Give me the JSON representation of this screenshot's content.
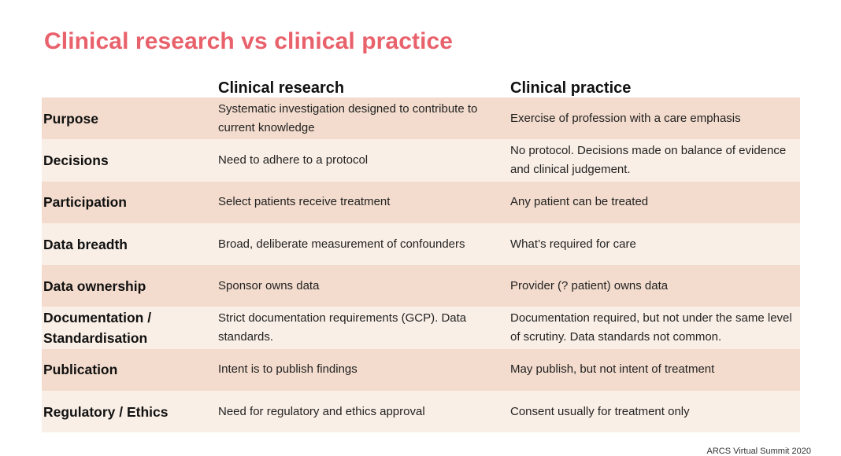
{
  "title": "Clinical research vs clinical practice",
  "columns": {
    "research": "Clinical research",
    "practice": "Clinical practice"
  },
  "rows": [
    {
      "label": "Purpose",
      "research": "Systematic investigation designed to contribute to current knowledge",
      "practice": "Exercise of profession with a care emphasis"
    },
    {
      "label": "Decisions",
      "research": "Need to adhere to a protocol",
      "practice": "No protocol. Decisions made on balance of evidence and clinical judgement."
    },
    {
      "label": "Participation",
      "research": "Select patients receive treatment",
      "practice": "Any patient can be treated"
    },
    {
      "label": "Data breadth",
      "research": "Broad, deliberate measurement of confounders",
      "practice": "What’s required for care"
    },
    {
      "label": "Data ownership",
      "research": "Sponsor owns data",
      "practice": "Provider (? patient) owns data"
    },
    {
      "label": "Documentation / Standardisation",
      "research": "Strict documentation requirements (GCP). Data standards.",
      "practice": "Documentation required, but not under the same level of scrutiny. Data standards not common."
    },
    {
      "label": "Publication",
      "research": "Intent is to publish findings",
      "practice": "May publish, but not intent of treatment"
    },
    {
      "label": "Regulatory / Ethics",
      "research": "Need for regulatory and ethics approval",
      "practice": "Consent usually for treatment only"
    }
  ],
  "footer": "ARCS Virtual Summit 2020",
  "colors": {
    "title": "#e8616b",
    "row_dark": "#f3dccd",
    "row_light": "#faefe6"
  }
}
